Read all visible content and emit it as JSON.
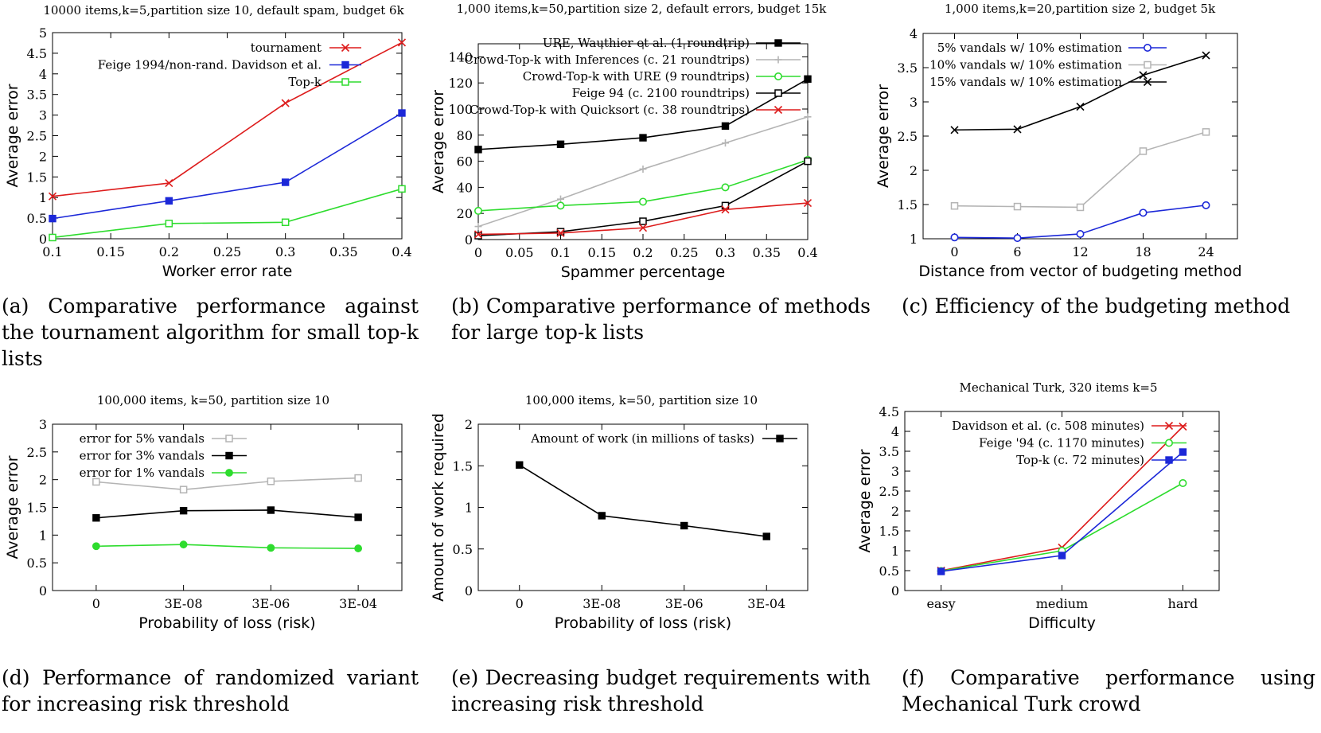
{
  "chart_data": [
    {
      "id": "a",
      "type": "line",
      "title": "10000 items,k=5,partition size 10, default spam, budget 6k",
      "xlabel": "Worker error rate",
      "ylabel": "Average error",
      "xlim": [
        0.1,
        0.4
      ],
      "ylim": [
        0,
        5
      ],
      "xticks": [
        0.1,
        0.15,
        0.2,
        0.25,
        0.3,
        0.35,
        0.4
      ],
      "xtick_labels": [
        "0.1",
        "0.15",
        "0.2",
        "0.25",
        "0.3",
        "0.35",
        "0.4"
      ],
      "yticks": [
        0,
        0.5,
        1,
        1.5,
        2,
        2.5,
        3,
        3.5,
        4,
        4.5,
        5
      ],
      "ytick_labels": [
        "0",
        "0.5",
        "1",
        "1.5",
        "2",
        "2.5",
        "3",
        "3.5",
        "4",
        "4.5",
        "5"
      ],
      "series": [
        {
          "name": "tournament",
          "color": "#dd1c1c",
          "marker": "x",
          "x": [
            0.1,
            0.2,
            0.3,
            0.4
          ],
          "y": [
            1.03,
            1.35,
            3.29,
            4.76
          ]
        },
        {
          "name": "Feige 1994/non-rand. Davidson et al.",
          "color": "#1c28d8",
          "marker": "square-filled",
          "x": [
            0.1,
            0.2,
            0.3,
            0.4
          ],
          "y": [
            0.49,
            0.92,
            1.37,
            3.05
          ]
        },
        {
          "name": "Top-k",
          "color": "#2edc2e",
          "marker": "square-open",
          "x": [
            0.1,
            0.2,
            0.3,
            0.4
          ],
          "y": [
            0.03,
            0.37,
            0.4,
            1.21
          ]
        }
      ],
      "caption": "(a) Comparative performance against the tournament algorithm for small top-k lists"
    },
    {
      "id": "b",
      "type": "line",
      "title": "1,000 items,k=50,partition size 2, default errors, budget 15k",
      "xlabel": "Spammer percentage",
      "ylabel": "Average error",
      "xlim": [
        0,
        0.4
      ],
      "ylim": [
        0,
        150
      ],
      "xticks": [
        0,
        0.05,
        0.1,
        0.15,
        0.2,
        0.25,
        0.3,
        0.35,
        0.4
      ],
      "xtick_labels": [
        "0",
        "0.05",
        "0.1",
        "0.15",
        "0.2",
        "0.25",
        "0.3",
        "0.35",
        "0.4"
      ],
      "yticks": [
        0,
        20,
        40,
        60,
        80,
        100,
        120,
        140
      ],
      "ytick_labels": [
        "0",
        "20",
        "40",
        "60",
        "80",
        "100",
        "120",
        "140"
      ],
      "series": [
        {
          "name": "URE, Wauthier et al. (1 roundtrip)",
          "color": "#000000",
          "marker": "square-filled",
          "x": [
            0,
            0.1,
            0.2,
            0.3,
            0.4
          ],
          "y": [
            69,
            73,
            78,
            87,
            123
          ]
        },
        {
          "name": "Crowd-Top-k with Inferences (c. 21 roundtrips)",
          "color": "#b4b4b4",
          "marker": "plus",
          "x": [
            0,
            0.1,
            0.2,
            0.3,
            0.4
          ],
          "y": [
            10,
            31,
            54,
            74,
            94
          ]
        },
        {
          "name": "Crowd-Top-k with URE (9 roundtrips)",
          "color": "#2edc2e",
          "marker": "circle-open",
          "x": [
            0,
            0.1,
            0.2,
            0.3,
            0.4
          ],
          "y": [
            22,
            26,
            29,
            40,
            61
          ]
        },
        {
          "name": "Feige 94 (c. 2100 roundtrips)",
          "color": "#000000",
          "marker": "square-open",
          "x": [
            0,
            0.1,
            0.2,
            0.3,
            0.4
          ],
          "y": [
            3,
            6,
            14,
            26,
            60
          ]
        },
        {
          "name": "Crowd-Top-k with Quicksort (c. 38 roundtrips)",
          "color": "#dd1c1c",
          "marker": "x",
          "x": [
            0,
            0.1,
            0.2,
            0.3,
            0.4
          ],
          "y": [
            4,
            5,
            9,
            23,
            28
          ]
        }
      ],
      "caption": "(b) Comparative performance of methods for large top-k lists"
    },
    {
      "id": "c",
      "type": "line",
      "title": "1,000 items,k=20,partition size 2, budget 5k",
      "xlabel": "Distance from vector of budgeting method",
      "ylabel": "Average error",
      "xlim": [
        -3,
        27
      ],
      "ylim": [
        1,
        4
      ],
      "xticks": [
        0,
        6,
        12,
        18,
        24
      ],
      "xtick_labels": [
        "0",
        "6",
        "12",
        "18",
        "24"
      ],
      "yticks": [
        1,
        1.5,
        2,
        2.5,
        3,
        3.5,
        4
      ],
      "ytick_labels": [
        "1",
        "1.5",
        "2",
        "2.5",
        "3",
        "3.5",
        "4"
      ],
      "series": [
        {
          "name": "5% vandals w/ 10% estimation",
          "color": "#1c28d8",
          "marker": "circle-open",
          "x": [
            0,
            6,
            12,
            18,
            24
          ],
          "y": [
            1.02,
            1.01,
            1.07,
            1.38,
            1.49
          ]
        },
        {
          "name": "10% vandals w/ 10% estimation",
          "color": "#b4b4b4",
          "marker": "square-open",
          "x": [
            0,
            6,
            12,
            18,
            24
          ],
          "y": [
            1.48,
            1.47,
            1.46,
            2.28,
            2.56
          ]
        },
        {
          "name": "15% vandals w/ 10% estimation",
          "color": "#000000",
          "marker": "x",
          "x": [
            0,
            6,
            12,
            18,
            24
          ],
          "y": [
            2.59,
            2.6,
            2.93,
            3.39,
            3.68
          ]
        }
      ],
      "caption": "(c) Efficiency of the budgeting method"
    },
    {
      "id": "d",
      "type": "line",
      "title": "100,000 items, k=50, partition size 10",
      "xlabel": "Probability of loss (risk)",
      "ylabel": "Average error",
      "xlim": [
        -0.5,
        3.5
      ],
      "ylim": [
        0,
        3
      ],
      "xticks": [
        0,
        1,
        2,
        3
      ],
      "xtick_labels": [
        "0",
        "3E-08",
        "3E-06",
        "3E-04"
      ],
      "yticks": [
        0,
        0.5,
        1,
        1.5,
        2,
        2.5,
        3
      ],
      "ytick_labels": [
        "0",
        "0.5",
        "1",
        "1.5",
        "2",
        "2.5",
        "3"
      ],
      "series": [
        {
          "name": "error for 5% vandals",
          "color": "#b4b4b4",
          "marker": "square-open",
          "x": [
            0,
            1,
            2,
            3
          ],
          "y": [
            1.96,
            1.82,
            1.97,
            2.03
          ]
        },
        {
          "name": "error for 3% vandals",
          "color": "#000000",
          "marker": "square-filled",
          "x": [
            0,
            1,
            2,
            3
          ],
          "y": [
            1.31,
            1.44,
            1.45,
            1.32
          ]
        },
        {
          "name": "error for 1% vandals",
          "color": "#2edc2e",
          "marker": "circle-filled",
          "x": [
            0,
            1,
            2,
            3
          ],
          "y": [
            0.8,
            0.83,
            0.77,
            0.76
          ]
        }
      ],
      "caption": "(d) Performance of randomized variant for increasing risk threshold"
    },
    {
      "id": "e",
      "type": "line",
      "title": "100,000 items, k=50, partition size 10",
      "xlabel": "Probability of loss (risk)",
      "ylabel": "Amount of work required",
      "xlim": [
        -0.5,
        3.5
      ],
      "ylim": [
        0,
        2
      ],
      "xticks": [
        0,
        1,
        2,
        3
      ],
      "xtick_labels": [
        "0",
        "3E-08",
        "3E-06",
        "3E-04"
      ],
      "yticks": [
        0,
        0.5,
        1,
        1.5,
        2
      ],
      "ytick_labels": [
        "0",
        "0.5",
        "1",
        "1.5",
        "2"
      ],
      "series": [
        {
          "name": "Amount of work (in millions of tasks)",
          "color": "#000000",
          "marker": "square-filled",
          "x": [
            0,
            1,
            2,
            3
          ],
          "y": [
            1.51,
            0.9,
            0.78,
            0.65
          ]
        }
      ],
      "caption": "(e) Decreasing budget requirements with increasing risk threshold"
    },
    {
      "id": "f",
      "type": "line",
      "title": "Mechanical Turk, 320 items k=5",
      "xlabel": "Difficulty",
      "ylabel": "Average error",
      "xlim": [
        -0.3,
        2.3
      ],
      "ylim": [
        0,
        4.5
      ],
      "xticks": [
        0,
        1,
        2
      ],
      "xtick_labels": [
        "easy",
        "medium",
        "hard"
      ],
      "yticks": [
        0,
        0.5,
        1,
        1.5,
        2,
        2.5,
        3,
        3.5,
        4,
        4.5
      ],
      "ytick_labels": [
        "0",
        "0.5",
        "1",
        "1.5",
        "2",
        "2.5",
        "3",
        "3.5",
        "4",
        "4.5"
      ],
      "series": [
        {
          "name": "Davidson et al. (c. 508 minutes)",
          "color": "#dd1c1c",
          "marker": "x",
          "x": [
            0,
            1,
            2
          ],
          "y": [
            0.5,
            1.08,
            4.12
          ]
        },
        {
          "name": "Feige '94 (c. 1170 minutes)",
          "color": "#2edc2e",
          "marker": "circle-open",
          "x": [
            0,
            1,
            2
          ],
          "y": [
            0.49,
            1.0,
            2.7
          ]
        },
        {
          "name": "Top-k (c. 72 minutes)",
          "color": "#1c28d8",
          "marker": "square-filled",
          "x": [
            0,
            1,
            2
          ],
          "y": [
            0.48,
            0.88,
            3.48
          ]
        }
      ],
      "caption": "(f) Comparative performance using Mechanical Turk crowd"
    }
  ]
}
